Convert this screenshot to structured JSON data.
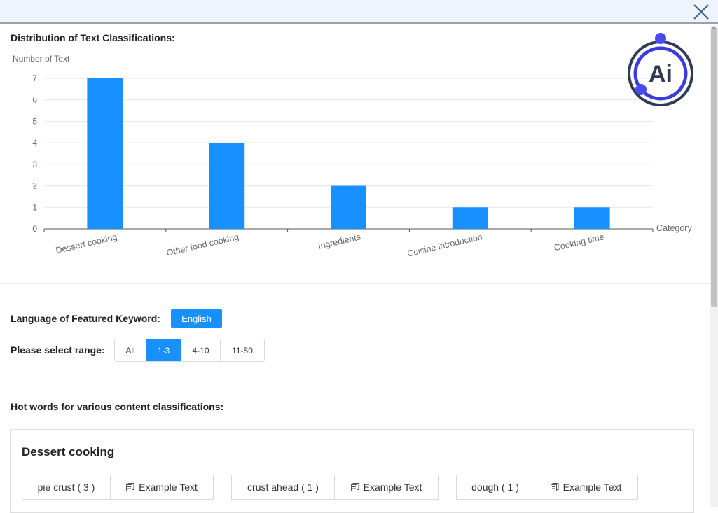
{
  "header": {
    "close_icon": "close-x-icon"
  },
  "chart_section": {
    "title": "Distribution of Text Classifications:"
  },
  "chart_data": {
    "type": "bar",
    "title": "",
    "ylabel": "Number of Text",
    "xlabel": "Category",
    "categories": [
      "Dessert cooking",
      "Other food cooking",
      "Ingredients",
      "Cuisine introduction",
      "Cooking time"
    ],
    "values": [
      7,
      4,
      2,
      1,
      1
    ],
    "yticks": [
      "0",
      "1",
      "2",
      "3",
      "4",
      "5",
      "6",
      "7"
    ],
    "ylim": [
      0,
      7
    ],
    "grid": true,
    "bar_color": "#1890ff"
  },
  "logo": {
    "text": "Ai",
    "color": "#3b3bdf"
  },
  "keyword_language": {
    "label": "Language of Featured Keyword:",
    "button": "English"
  },
  "range": {
    "label": "Please select range:",
    "options": [
      "All",
      "1-3",
      "4-10",
      "11-50"
    ],
    "selected": "1-3"
  },
  "hotwords": {
    "label": "Hot words for various content classifications:",
    "groups": [
      {
        "title": "Dessert cooking",
        "words": [
          {
            "word": "pie crust ( 3 )",
            "action": "Example Text"
          },
          {
            "word": "crust ahead ( 1 )",
            "action": "Example Text"
          },
          {
            "word": "dough ( 1 )",
            "action": "Example Text"
          }
        ]
      }
    ]
  },
  "colors": {
    "accent": "#1890ff",
    "topbar": "#eef4fb"
  }
}
